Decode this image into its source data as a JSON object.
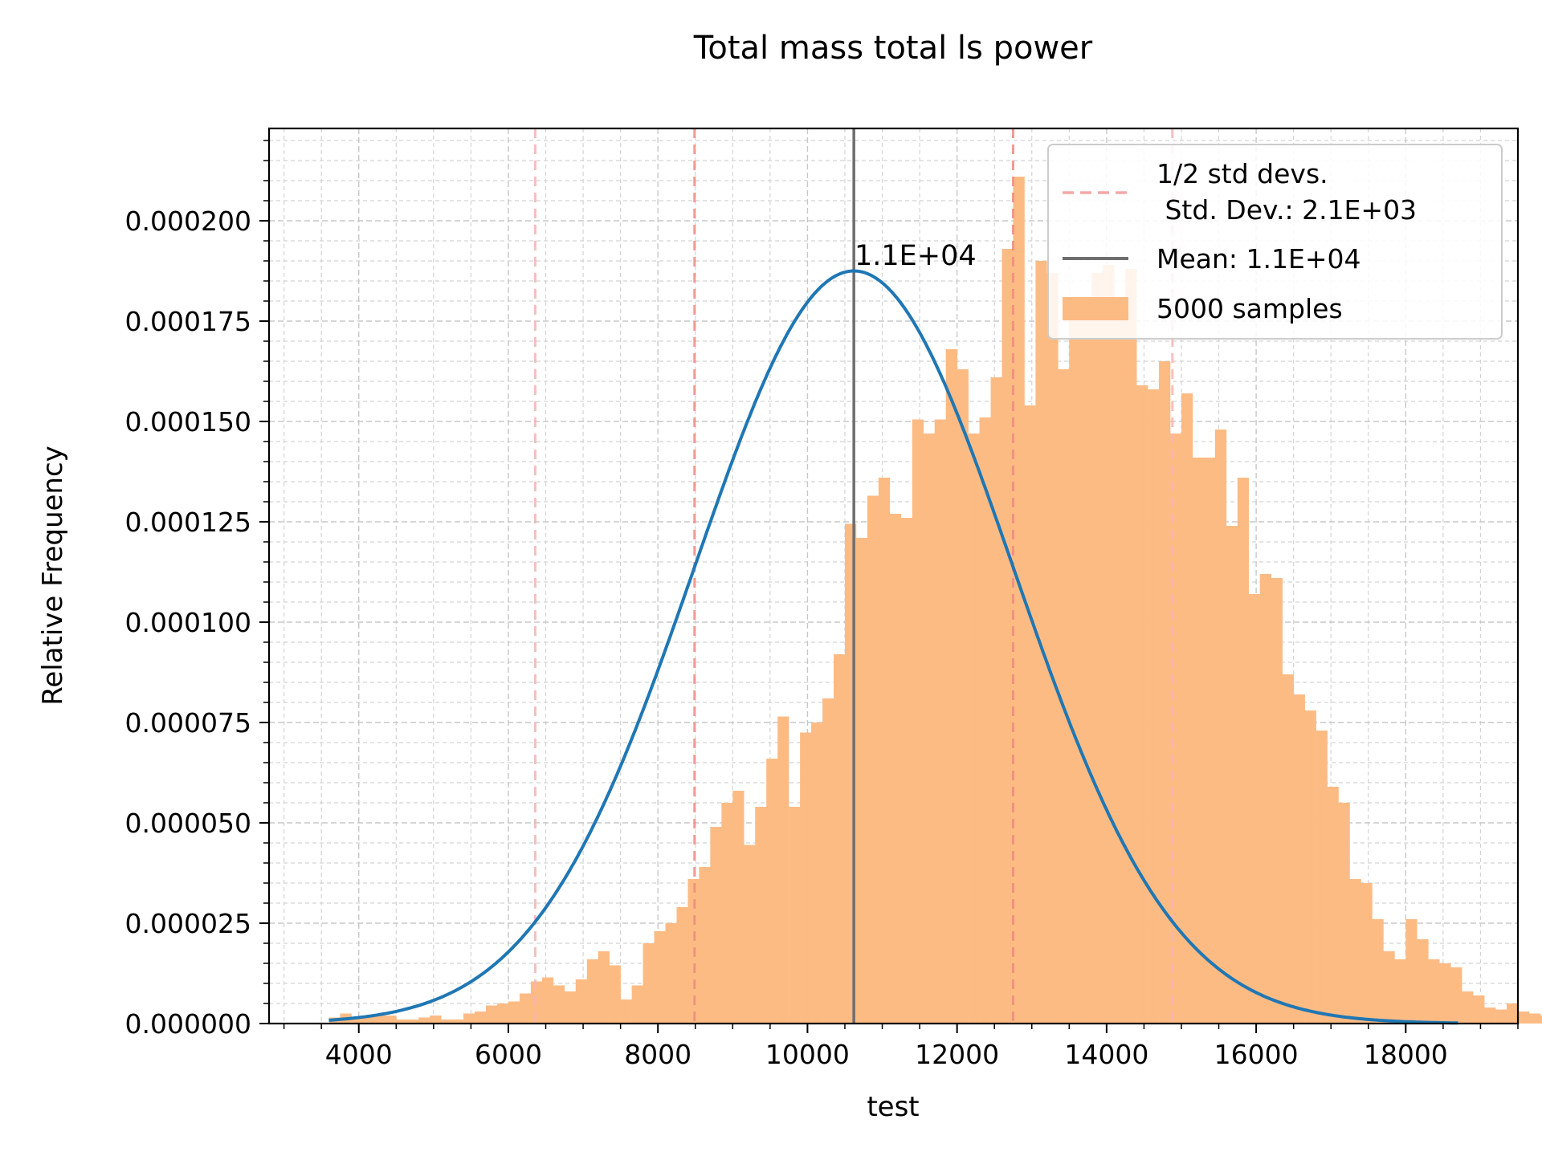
{
  "chart_data": {
    "type": "bar",
    "title": "Total mass  total ls power",
    "xlabel": "test",
    "ylabel": "Relative Frequency",
    "xlim": [
      2800,
      19500
    ],
    "ylim": [
      0,
      0.000223
    ],
    "x_ticks": [
      4000,
      6000,
      8000,
      10000,
      12000,
      14000,
      16000,
      18000
    ],
    "x_tick_labels": [
      "4000",
      "6000",
      "8000",
      "10000",
      "12000",
      "14000",
      "16000",
      "18000"
    ],
    "y_ticks": [
      0,
      2.5e-05,
      5e-05,
      7.5e-05,
      0.0001,
      0.000125,
      0.00015,
      0.000175,
      0.0002
    ],
    "y_tick_labels": [
      "0.000000",
      "0.000025",
      "0.000050",
      "0.000075",
      "0.000100",
      "0.000125",
      "0.000150",
      "0.000175",
      "0.000200"
    ],
    "grid": true,
    "legend_position": "upper right",
    "histogram": {
      "name": "5000 samples",
      "color": "#fdbb84",
      "bin_start": 3600,
      "bin_width": 150,
      "values": [
        1.5e-06,
        2.5e-06,
        1.5e-06,
        2e-06,
        2e-06,
        2e-06,
        1e-06,
        1e-06,
        1.5e-06,
        2e-06,
        1e-06,
        1e-06,
        2.5e-06,
        3e-06,
        4.5e-06,
        5e-06,
        5.5e-06,
        7.5e-06,
        1.05e-05,
        1.15e-05,
        9.5e-06,
        8e-06,
        1.1e-05,
        1.6e-05,
        1.8e-05,
        1.45e-05,
        6e-06,
        9.5e-06,
        2e-05,
        2.3e-05,
        2.5e-05,
        2.9e-05,
        3.6e-05,
        3.9e-05,
        4.9e-05,
        5.5e-05,
        5.8e-05,
        4.45e-05,
        5.4e-05,
        6.6e-05,
        7.65e-05,
        5.4e-05,
        7.25e-05,
        7.5e-05,
        8.1e-05,
        9.2e-05,
        0.0001245,
        0.000121,
        0.0001315,
        0.000136,
        0.000127,
        0.000126,
        0.0001505,
        0.000147,
        0.0001505,
        0.000168,
        0.000163,
        0.000147,
        0.000151,
        0.000161,
        0.000193,
        0.000211,
        0.000154,
        0.00019,
        0.000187,
        0.000163,
        0.000177,
        0.000176,
        0.000187,
        0.000189,
        0.00018,
        0.000188,
        0.000159,
        0.000158,
        0.000165,
        0.000147,
        0.000157,
        0.000141,
        0.000141,
        0.000148,
        0.000124,
        0.000136,
        0.000107,
        0.000112,
        0.000111,
        8.7e-05,
        8.2e-05,
        7.8e-05,
        7.3e-05,
        5.9e-05,
        5.5e-05,
        3.6e-05,
        3.5e-05,
        2.6e-05,
        1.8e-05,
        1.6e-05,
        2.6e-05,
        2.1e-05,
        1.6e-05,
        1.5e-05,
        1.4e-05,
        8e-06,
        7e-06,
        4e-06,
        3.5e-06,
        5e-06,
        3e-06,
        2.5e-06,
        2e-06,
        1e-06,
        5e-07,
        1e-06,
        5e-07,
        5e-07,
        1e-06,
        5e-07,
        5e-07,
        2e-06,
        1.5e-06,
        1e-06,
        5e-07,
        1e-06,
        1e-06,
        1e-06,
        5e-07,
        1e-06,
        5e-07,
        5e-07
      ]
    },
    "normal_fit": {
      "color": "#1f77b4",
      "mean": 10620,
      "std": 2130,
      "peak": 0.0001875,
      "x_range": [
        3600,
        18700
      ]
    },
    "mean_line": {
      "name": "Mean: 1.1E+04",
      "color": "#6e6e6e",
      "x": 10620,
      "annotation": "1.1E+04"
    },
    "std_lines": {
      "name": "1/2 std devs.\n Std. Dev.: 2.1E+03",
      "legend_line1": "1/2 std devs.",
      "legend_line2": " Std. Dev.: 2.1E+03",
      "color": "#f4a8a8",
      "inner": [
        8490,
        12750
      ],
      "outer": [
        6360,
        14880
      ]
    }
  }
}
